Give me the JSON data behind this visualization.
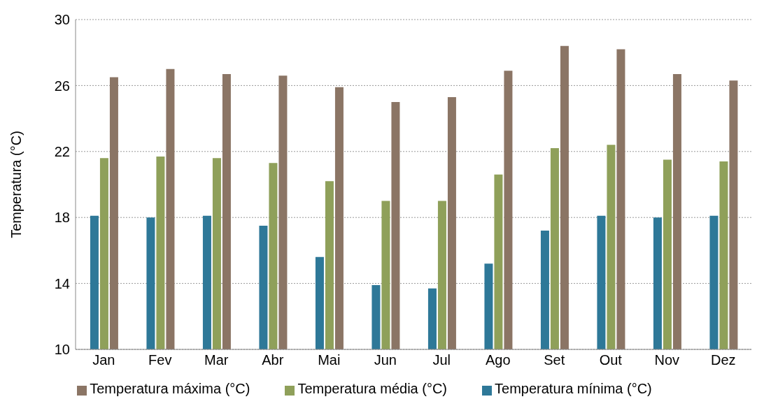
{
  "chart_data": {
    "type": "bar",
    "ylabel": "Temperatura (°C)",
    "categories": [
      "Jan",
      "Fev",
      "Mar",
      "Abr",
      "Mai",
      "Jun",
      "Jul",
      "Ago",
      "Set",
      "Out",
      "Nov",
      "Dez"
    ],
    "series": [
      {
        "name": "Temperatura mínima (°C)",
        "color": "#2e7898",
        "values": [
          18.1,
          18.0,
          18.1,
          17.5,
          15.6,
          13.9,
          13.7,
          15.2,
          17.2,
          18.1,
          18.0,
          18.1
        ]
      },
      {
        "name": "Temperatura média (°C)",
        "color": "#8fa05a",
        "values": [
          21.6,
          21.7,
          21.6,
          21.3,
          20.2,
          19.0,
          19.0,
          20.6,
          22.2,
          22.4,
          21.5,
          21.4
        ]
      },
      {
        "name": "Temperatura máxima (°C)",
        "color": "#8b7565",
        "values": [
          26.5,
          27.0,
          26.7,
          26.6,
          25.9,
          25.0,
          25.3,
          26.9,
          28.4,
          28.2,
          26.7,
          26.3
        ]
      }
    ],
    "ylim": [
      10,
      30
    ],
    "yticks": [
      10,
      14,
      18,
      22,
      26,
      30
    ],
    "grid": "y",
    "legend": "bottom"
  }
}
